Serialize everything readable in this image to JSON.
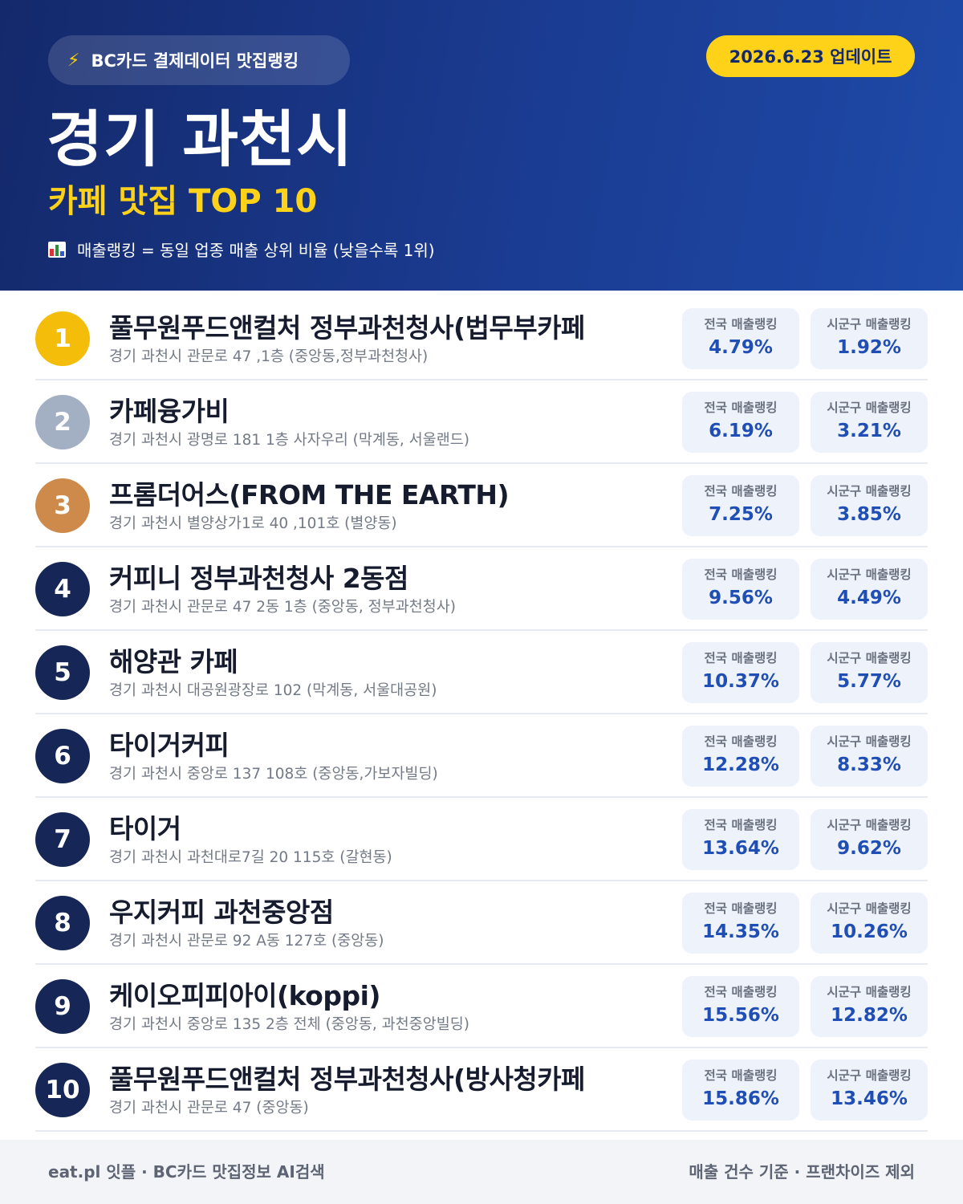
{
  "header": {
    "source_label": "BC카드 결제데이터 맛집랭킹",
    "source_icon": "lightning-icon",
    "update_label": "2026.6.23 업데이트",
    "city": "경기 과천시",
    "subtitle": "카페 맛집 TOP 10",
    "legend_icon": "bar-chart-icon",
    "legend_note": "매출랭킹 = 동일 업종 매출 상위 비율 (낮을수록 1위)"
  },
  "stat_labels": {
    "national": "전국 매출랭킹",
    "local": "시군구 매출랭킹"
  },
  "items": [
    {
      "rank": "1",
      "name": "풀무원푸드앤컬처 정부과천청사(법무부카페",
      "address": "경기 과천시 관문로 47 ,1층 (중앙동,정부과천청사)",
      "national": "4.79%",
      "local": "1.92%"
    },
    {
      "rank": "2",
      "name": "카페융가비",
      "address": "경기 과천시 광명로 181 1층 사자우리 (막계동, 서울랜드)",
      "national": "6.19%",
      "local": "3.21%"
    },
    {
      "rank": "3",
      "name": "프롬더어스(FROM THE EARTH)",
      "address": "경기 과천시 별양상가1로 40 ,101호 (별양동)",
      "national": "7.25%",
      "local": "3.85%"
    },
    {
      "rank": "4",
      "name": "커피니 정부과천청사 2동점",
      "address": "경기 과천시 관문로 47 2동 1층 (중앙동, 정부과천청사)",
      "national": "9.56%",
      "local": "4.49%"
    },
    {
      "rank": "5",
      "name": "해양관 카페",
      "address": "경기 과천시 대공원광장로 102 (막계동, 서울대공원)",
      "national": "10.37%",
      "local": "5.77%"
    },
    {
      "rank": "6",
      "name": "타이거커피",
      "address": "경기 과천시 중앙로 137 108호 (중앙동,가보자빌딩)",
      "national": "12.28%",
      "local": "8.33%"
    },
    {
      "rank": "7",
      "name": "타이거",
      "address": "경기 과천시 과천대로7길 20 115호 (갈현동)",
      "national": "13.64%",
      "local": "9.62%"
    },
    {
      "rank": "8",
      "name": "우지커피 과천중앙점",
      "address": "경기 과천시 관문로 92 A동 127호 (중앙동)",
      "national": "14.35%",
      "local": "10.26%"
    },
    {
      "rank": "9",
      "name": "케이오피피아이(koppi)",
      "address": "경기 과천시 중앙로 135 2층 전체 (중앙동, 과천중앙빌딩)",
      "national": "15.56%",
      "local": "12.82%"
    },
    {
      "rank": "10",
      "name": "풀무원푸드앤컬처 정부과천청사(방사청카페",
      "address": "경기 과천시 관문로 47 (중앙동)",
      "national": "15.86%",
      "local": "13.46%"
    }
  ],
  "footer": {
    "left": "eat.pl 잇플 · BC카드 맛집정보 AI검색",
    "right": "매출 건수 기준 · 프랜차이즈 제외"
  }
}
